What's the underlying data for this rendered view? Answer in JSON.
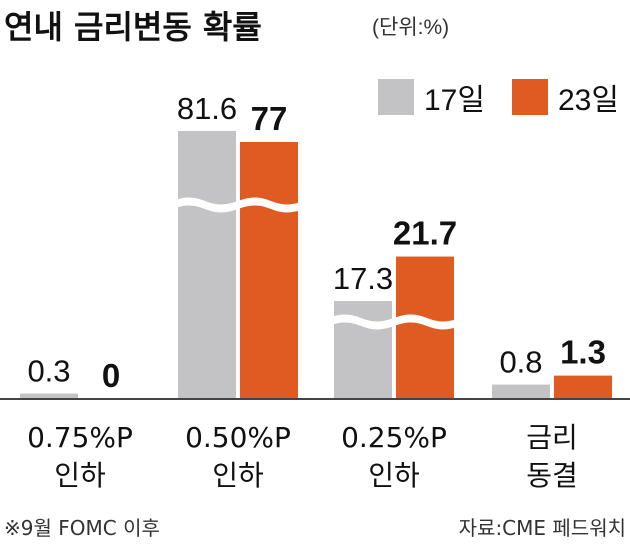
{
  "title": "연내 금리변동 확률",
  "unit": "(단위:%)",
  "colors": {
    "series_a": "#c3c3c6",
    "series_b": "#e05b21",
    "axis": "#444444"
  },
  "chart_data": {
    "type": "bar",
    "categories": [
      [
        "0.75%P",
        "인하"
      ],
      [
        "0.50%P",
        "인하"
      ],
      [
        "0.25%P",
        "인하"
      ],
      [
        "금리",
        "동결"
      ]
    ],
    "series": [
      {
        "name": "17일",
        "values": [
          0.3,
          81.6,
          17.3,
          0.8
        ],
        "labels": [
          "0.3",
          "81.6",
          "17.3",
          "0.8"
        ]
      },
      {
        "name": "23일",
        "values": [
          0,
          77,
          21.7,
          1.3
        ],
        "labels": [
          "0",
          "77",
          "21.7",
          "1.3"
        ]
      }
    ],
    "axis_break": true,
    "legend": "top-right"
  },
  "footnote_left": "※9월 FOMC 이후",
  "footnote_right": "자료:CME 페드워치"
}
